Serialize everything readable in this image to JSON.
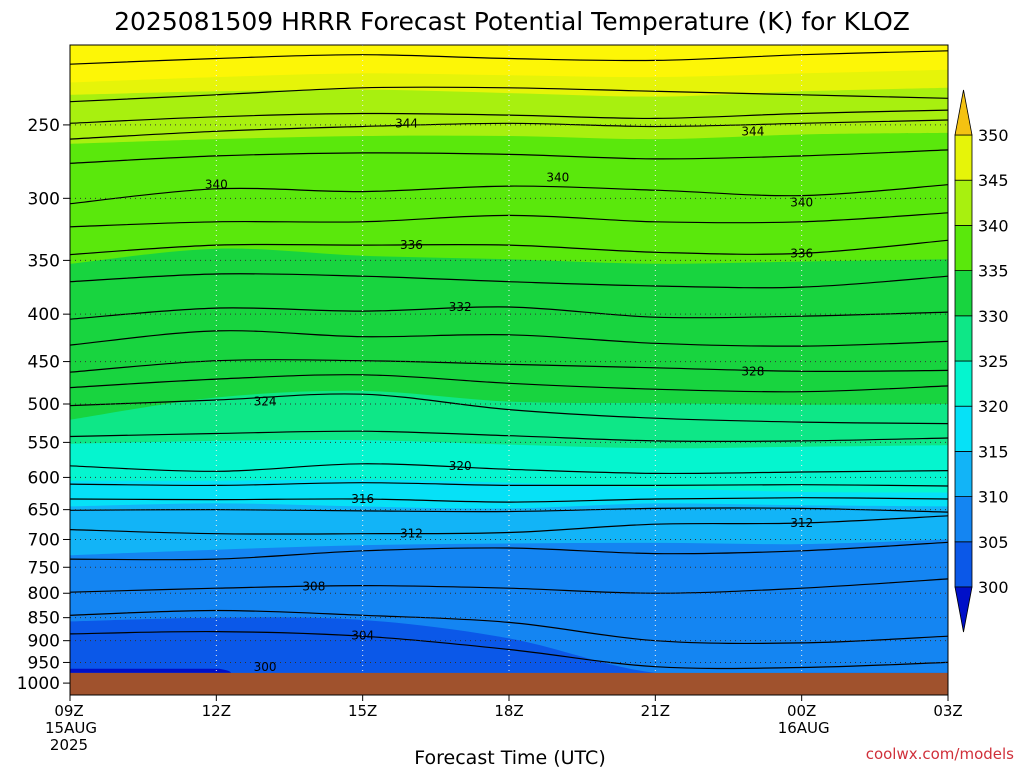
{
  "chart_data": {
    "type": "heatmap",
    "title": "2025081509 HRRR Forecast Potential Temperature (K) for KLOZ",
    "xlabel": "Forecast Time (UTC)",
    "ylabel": "",
    "credit": "coolwx.com/models",
    "y_scale": "log",
    "y_reversed": true,
    "y_range_hPa": [
      1030,
      205
    ],
    "surface_pressure_hPa": 975,
    "y_ticks": [
      250,
      300,
      350,
      400,
      450,
      500,
      550,
      600,
      650,
      700,
      750,
      800,
      850,
      900,
      950,
      1000
    ],
    "x_range_hours": [
      0,
      18
    ],
    "x_ticks": [
      {
        "hour": 0,
        "label": "09Z",
        "sub1": "15AUG",
        "sub2": "2025"
      },
      {
        "hour": 3,
        "label": "12Z",
        "sub1": "",
        "sub2": ""
      },
      {
        "hour": 6,
        "label": "15Z",
        "sub1": "",
        "sub2": ""
      },
      {
        "hour": 9,
        "label": "18Z",
        "sub1": "",
        "sub2": ""
      },
      {
        "hour": 12,
        "label": "21Z",
        "sub1": "",
        "sub2": ""
      },
      {
        "hour": 15,
        "label": "00Z",
        "sub1": "16AUG",
        "sub2": ""
      },
      {
        "hour": 18,
        "label": "03Z",
        "sub1": "",
        "sub2": ""
      }
    ],
    "colorbar": {
      "levels": [
        300,
        305,
        310,
        315,
        320,
        325,
        330,
        335,
        340,
        345,
        350
      ],
      "labels": [
        "300",
        "305",
        "310",
        "315",
        "320",
        "325",
        "330",
        "335",
        "340",
        "345",
        "350"
      ],
      "colors": [
        "#0a1ad8",
        "#0b58e8",
        "#1485f2",
        "#12b4f7",
        "#06e1f7",
        "#05f5cf",
        "#0ee787",
        "#18d43f",
        "#5ae80c",
        "#a8f00f",
        "#e6f409",
        "#fdf606"
      ],
      "under_color": "#0010c8",
      "over_color": "#f4c212"
    },
    "filled_levels_hPa": {
      "times": [
        0,
        3,
        6,
        9,
        12,
        15,
        18
      ],
      "bands": [
        {
          "value": 350,
          "p": [
            225,
            222,
            220,
            221,
            222,
            220,
            218
          ]
        },
        {
          "value": 345,
          "p": [
            232,
            230,
            229,
            231,
            233,
            230,
            228
          ]
        },
        {
          "value": 340,
          "p": [
            262,
            259,
            257,
            257,
            259,
            256,
            255
          ]
        },
        {
          "value": 335,
          "p": [
            353,
            340,
            346,
            349,
            353,
            351,
            349
          ]
        },
        {
          "value": 330,
          "p": [
            520,
            492,
            484,
            497,
            499,
            501,
            500
          ]
        },
        {
          "value": 325,
          "p": [
            552,
            548,
            547,
            553,
            558,
            556,
            554
          ]
        },
        {
          "value": 320,
          "p": [
            605,
            605,
            603,
            608,
            616,
            622,
            623
          ]
        },
        {
          "value": 315,
          "p": [
            645,
            640,
            645,
            648,
            640,
            643,
            645
          ]
        },
        {
          "value": 310,
          "p": [
            728,
            718,
            710,
            707,
            706,
            708,
            700
          ]
        },
        {
          "value": 305,
          "p": [
            858,
            850,
            855,
            895,
            975,
            975,
            975
          ]
        }
      ],
      "pocket_300": {
        "from_hour": 0,
        "to_hour": 3.3,
        "p_top": 965
      }
    },
    "contours": {
      "times": [
        0,
        3,
        6,
        9,
        12,
        15,
        18
      ],
      "lines": [
        {
          "value": 350,
          "p": [
            215,
            212,
            210,
            212,
            213,
            210,
            208
          ]
        },
        {
          "value": 348,
          "p": [
            236,
            232,
            228,
            228,
            230,
            232,
            234
          ]
        },
        {
          "value": 346,
          "p": [
            249,
            245,
            243,
            244,
            246,
            243,
            241
          ]
        },
        {
          "value": 344,
          "p": [
            259,
            254,
            251,
            249,
            251,
            249,
            247
          ]
        },
        {
          "value": 342,
          "p": [
            275,
            270,
            268,
            269,
            272,
            270,
            266
          ]
        },
        {
          "value": 340,
          "p": [
            304,
            293,
            295,
            291,
            294,
            298,
            290
          ]
        },
        {
          "value": 338,
          "p": [
            322,
            318,
            318,
            313,
            318,
            318,
            311
          ]
        },
        {
          "value": 336,
          "p": [
            345,
            337,
            337,
            337,
            343,
            344,
            333
          ]
        },
        {
          "value": 334,
          "p": [
            369,
            362,
            364,
            369,
            373,
            374,
            364
          ]
        },
        {
          "value": 332,
          "p": [
            405,
            394,
            397,
            393,
            403,
            402,
            398
          ]
        },
        {
          "value": 330,
          "p": [
            432,
            417,
            423,
            421,
            430,
            433,
            428
          ]
        },
        {
          "value": 328,
          "p": [
            462,
            449,
            449,
            453,
            457,
            461,
            460
          ]
        },
        {
          "value": 326,
          "p": [
            480,
            470,
            465,
            475,
            482,
            485,
            478
          ]
        },
        {
          "value": 324,
          "p": [
            502,
            495,
            488,
            507,
            518,
            523,
            525
          ]
        },
        {
          "value": 322,
          "p": [
            542,
            538,
            535,
            541,
            548,
            548,
            544
          ]
        },
        {
          "value": 320,
          "p": [
            583,
            591,
            580,
            588,
            594,
            592,
            590
          ]
        },
        {
          "value": 318,
          "p": [
            610,
            612,
            608,
            612,
            612,
            611,
            613
          ]
        },
        {
          "value": 316,
          "p": [
            633,
            634,
            633,
            638,
            633,
            631,
            633
          ]
        },
        {
          "value": 314,
          "p": [
            651,
            650,
            652,
            653,
            648,
            648,
            654
          ]
        },
        {
          "value": 312,
          "p": [
            683,
            690,
            690,
            688,
            674,
            672,
            660
          ]
        },
        {
          "value": 310,
          "p": [
            735,
            735,
            720,
            715,
            725,
            720,
            705
          ]
        },
        {
          "value": 308,
          "p": [
            798,
            790,
            785,
            790,
            800,
            790,
            772
          ]
        },
        {
          "value": 306,
          "p": [
            845,
            835,
            845,
            860,
            900,
            905,
            890
          ]
        },
        {
          "value": 304,
          "p": [
            885,
            880,
            890,
            920,
            960,
            962,
            950
          ]
        }
      ],
      "labels": [
        {
          "text": "344",
          "hour": 6.9,
          "p": 249
        },
        {
          "text": "344",
          "hour": 14.0,
          "p": 254
        },
        {
          "text": "340",
          "hour": 3.0,
          "p": 290
        },
        {
          "text": "340",
          "hour": 10.0,
          "p": 285
        },
        {
          "text": "340",
          "hour": 15.0,
          "p": 303
        },
        {
          "text": "336",
          "hour": 7.0,
          "p": 337
        },
        {
          "text": "336",
          "hour": 15.0,
          "p": 344
        },
        {
          "text": "332",
          "hour": 8.0,
          "p": 393
        },
        {
          "text": "328",
          "hour": 14.0,
          "p": 461
        },
        {
          "text": "324",
          "hour": 4.0,
          "p": 497
        },
        {
          "text": "320",
          "hour": 8.0,
          "p": 583
        },
        {
          "text": "316",
          "hour": 6.0,
          "p": 633
        },
        {
          "text": "312",
          "hour": 7.0,
          "p": 690
        },
        {
          "text": "312",
          "hour": 15.0,
          "p": 672
        },
        {
          "text": "308",
          "hour": 5.0,
          "p": 787
        },
        {
          "text": "304",
          "hour": 6.0,
          "p": 888
        },
        {
          "text": "300",
          "hour": 4.0,
          "p": 961
        }
      ]
    }
  }
}
